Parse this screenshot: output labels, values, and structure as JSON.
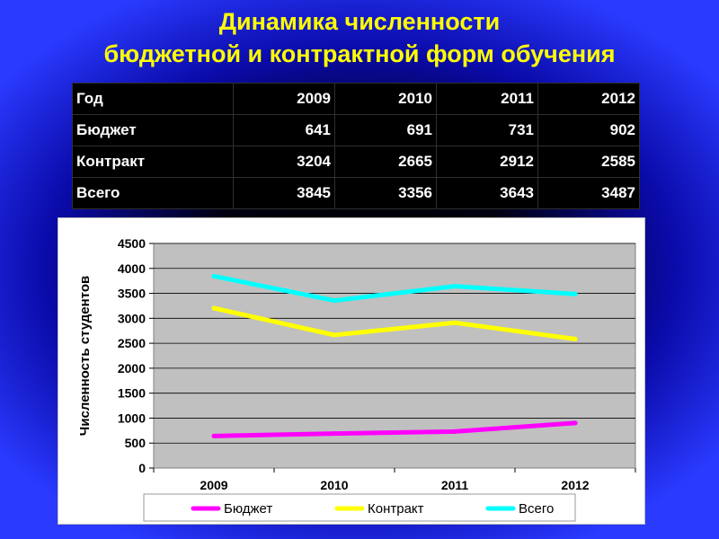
{
  "title": {
    "line1": "Динамика численности",
    "line2": "бюджетной и контрактной  форм обучения"
  },
  "table": {
    "header": [
      "Год",
      "2009",
      "2010",
      "2011",
      "2012"
    ],
    "rows": [
      [
        "Бюджет",
        "641",
        "691",
        "731",
        "902"
      ],
      [
        "Контракт",
        "3204",
        "2665",
        "2912",
        "2585"
      ],
      [
        "Всего",
        "3845",
        "3356",
        "3643",
        "3487"
      ]
    ]
  },
  "chart_data": {
    "type": "line",
    "title": "",
    "xlabel": "",
    "ylabel": "Численность студентов",
    "categories": [
      "2009",
      "2010",
      "2011",
      "2012"
    ],
    "ylim": [
      0,
      4500
    ],
    "yticks": [
      0,
      500,
      1000,
      1500,
      2000,
      2500,
      3000,
      3500,
      4000,
      4500
    ],
    "grid": true,
    "legend": "bottom",
    "plot_background": "#c0c0c0",
    "series": [
      {
        "name": "Бюджет",
        "values": [
          641,
          691,
          731,
          902
        ],
        "color": "#ff00ff"
      },
      {
        "name": "Контракт",
        "values": [
          3204,
          2665,
          2912,
          2585
        ],
        "color": "#ffff00"
      },
      {
        "name": "Всего",
        "values": [
          3845,
          3356,
          3643,
          3487
        ],
        "color": "#00ffff"
      }
    ]
  },
  "colors": {
    "title": "#ffff00",
    "table_bg": "#000000",
    "table_text": "#ffffff",
    "background_edge": "#2a3aff"
  }
}
